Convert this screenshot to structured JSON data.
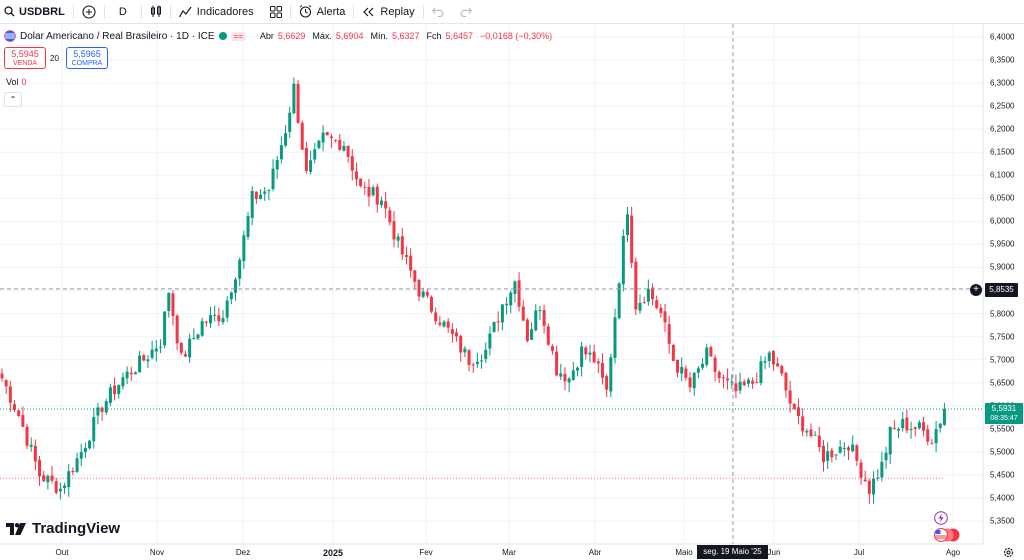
{
  "toolbar": {
    "symbol": "USDBRL",
    "interval": "D",
    "indicators_label": "Indicadores",
    "alert_label": "Alerta",
    "replay_label": "Replay"
  },
  "legend": {
    "title": "Dolar Americano / Real Brasileiro · 1D · ICE",
    "open_label": "Abr",
    "open": "5,6629",
    "high_label": "Máx.",
    "high": "5,6904",
    "low_label": "Mín.",
    "low": "5,6327",
    "close_label": "Fch",
    "close": "5,6457",
    "change": "−0,0168 (−0,30%)",
    "badge": "=="
  },
  "quote": {
    "sell_price": "5,5945",
    "sell_label": "VENDA",
    "spread": "20",
    "buy_price": "5,5965",
    "buy_label": "COMPRA"
  },
  "volume": {
    "label": "Vol",
    "value": "0"
  },
  "logo_text": "TradingView",
  "price_axis": {
    "ticks": [
      "6,4000",
      "6,3500",
      "6,3000",
      "6,2500",
      "6,2000",
      "6,1500",
      "6,1000",
      "6,0500",
      "6,0000",
      "5,9500",
      "5,9000",
      "5,8500",
      "5,8000",
      "5,7500",
      "5,7000",
      "5,6500",
      "5,6000",
      "5,5500",
      "5,5000",
      "5,4500",
      "5,4000",
      "5,3500"
    ],
    "crosshair_price": "5,8535",
    "last_price": "5,5931",
    "countdown": "08:35:47"
  },
  "time_axis": {
    "labels": [
      "Out",
      "Nov",
      "Dez",
      "2025",
      "Fev",
      "Mar",
      "Abr",
      "Maio",
      "Jun",
      "Jul",
      "Ago"
    ],
    "crosshair_date": "seg. 19 Maio '25"
  },
  "colors": {
    "up": "#089981",
    "down": "#f23645",
    "crosshair": "#9598a1",
    "grid": "#f0f3fa"
  },
  "chart_data": {
    "type": "candlestick",
    "title": "Dolar Americano / Real Brasileiro · 1D · ICE",
    "ylim": [
      5.33,
      6.43
    ],
    "y_ticks": [
      6.4,
      6.35,
      6.3,
      6.25,
      6.2,
      6.15,
      6.1,
      6.05,
      6.0,
      5.95,
      5.9,
      5.85,
      5.8,
      5.75,
      5.7,
      5.65,
      5.6,
      5.55,
      5.5,
      5.45,
      5.4,
      5.35
    ],
    "x_labels": [
      "Out",
      "Nov",
      "Dez",
      "2025",
      "Fev",
      "Mar",
      "Abr",
      "Maio",
      "Jun",
      "Jul",
      "Ago"
    ],
    "grid": true,
    "waypoints": [
      [
        0,
        5.66
      ],
      [
        4,
        5.58
      ],
      [
        9,
        5.45
      ],
      [
        14,
        5.42
      ],
      [
        19,
        5.5
      ],
      [
        24,
        5.6
      ],
      [
        29,
        5.66
      ],
      [
        34,
        5.7
      ],
      [
        38,
        5.74
      ],
      [
        40,
        5.85
      ],
      [
        43,
        5.7
      ],
      [
        48,
        5.78
      ],
      [
        53,
        5.8
      ],
      [
        57,
        5.92
      ],
      [
        60,
        6.05
      ],
      [
        64,
        6.07
      ],
      [
        68,
        6.2
      ],
      [
        70,
        6.29
      ],
      [
        73,
        6.1
      ],
      [
        77,
        6.18
      ],
      [
        82,
        6.17
      ],
      [
        86,
        6.07
      ],
      [
        91,
        6.05
      ],
      [
        95,
        5.95
      ],
      [
        100,
        5.85
      ],
      [
        104,
        5.8
      ],
      [
        108,
        5.75
      ],
      [
        112,
        5.7
      ],
      [
        116,
        5.72
      ],
      [
        120,
        5.82
      ],
      [
        123,
        5.87
      ],
      [
        126,
        5.75
      ],
      [
        129,
        5.82
      ],
      [
        133,
        5.68
      ],
      [
        136,
        5.66
      ],
      [
        139,
        5.72
      ],
      [
        142,
        5.7
      ],
      [
        145,
        5.63
      ],
      [
        148,
        5.88
      ],
      [
        150,
        6.03
      ],
      [
        152,
        5.82
      ],
      [
        155,
        5.85
      ],
      [
        158,
        5.8
      ],
      [
        161,
        5.7
      ],
      [
        165,
        5.64
      ],
      [
        169,
        5.71
      ],
      [
        172,
        5.66
      ],
      [
        176,
        5.63
      ],
      [
        180,
        5.65
      ],
      [
        184,
        5.71
      ],
      [
        187,
        5.66
      ],
      [
        190,
        5.58
      ],
      [
        193,
        5.55
      ],
      [
        197,
        5.49
      ],
      [
        201,
        5.51
      ],
      [
        203,
        5.52
      ],
      [
        206,
        5.46
      ],
      [
        208,
        5.42
      ],
      [
        211,
        5.47
      ],
      [
        213,
        5.54
      ],
      [
        216,
        5.56
      ],
      [
        220,
        5.55
      ],
      [
        223,
        5.53
      ],
      [
        226,
        5.59
      ]
    ],
    "last_close": 5.5931,
    "crosshair_price": 5.8535,
    "crosshair_date": "seg. 19 Maio '25"
  }
}
